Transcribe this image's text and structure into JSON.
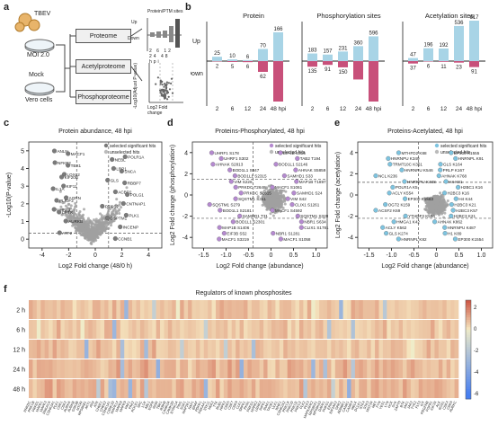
{
  "panel_labels": {
    "a": "a",
    "b": "b",
    "c": "c",
    "d": "d",
    "e": "e",
    "f": "f"
  },
  "panel_a": {
    "virus": "TBEV",
    "moi": "MOI 2.0",
    "mock": "Mock",
    "cells": "Vero cells",
    "boxes": [
      "Proteome",
      "Acetylproteome",
      "Phosphoproteome"
    ],
    "inset_title": "Protein/PTM sites",
    "up": "Up",
    "down": "Down",
    "inset_x": [
      "2",
      "6",
      "12",
      "24",
      "48 hpi"
    ],
    "volcano_y": "-Log10(Adjust P-value)",
    "volcano_x": "Log2 Fold change"
  },
  "chart_data": [
    {
      "id": "b",
      "type": "bar",
      "groups": [
        {
          "title": "Protein",
          "categories": [
            "2",
            "6",
            "12",
            "24",
            "48 hpi"
          ],
          "up": [
            25,
            10,
            6,
            70,
            166
          ],
          "down": [
            2,
            5,
            6,
            62,
            233
          ]
        },
        {
          "title": "Phosphorylation sites",
          "categories": [
            "2",
            "6",
            "12",
            "24",
            "48 hpi"
          ],
          "up": [
            183,
            157,
            231,
            360,
            596
          ],
          "down": [
            135,
            91,
            150,
            442,
            973
          ]
        },
        {
          "title": "Acetylation sites",
          "categories": [
            "2",
            "6",
            "12",
            "24",
            "48 hpi"
          ],
          "up": [
            47,
            196,
            192,
            536,
            617
          ],
          "down": [
            37,
            6,
            11,
            23,
            91
          ]
        }
      ],
      "ylabel_up": "Up",
      "ylabel_down": "Down",
      "colors": {
        "up": "#a8d4e6",
        "down": "#c8507a",
        "up_last": "#a8d4e6"
      }
    },
    {
      "id": "c",
      "type": "scatter",
      "title": "Protein abundance, 48 hpi",
      "xlabel": "Log2 Fold change (48/0 h)",
      "ylabel": "-Log10(P-value)",
      "xticks": [
        "-4",
        "-2",
        "0",
        "2",
        "4"
      ],
      "yticks": [
        "0",
        "1",
        "2",
        "3",
        "4",
        "5"
      ],
      "legend": [
        "selected significant hits",
        "unselected hits"
      ],
      "labels": [
        "ANLN",
        "POLR1A",
        "NFKB2",
        "LRP1",
        "LOXL2",
        "GLS",
        "KIF11",
        "ACBP2",
        "AGRN",
        "CNTNAP1",
        "UHRF1",
        "PLK1",
        "AURKB",
        "INCENP",
        "ATF2",
        "CCNB1",
        "MACF1",
        "NEBL",
        "TBX1",
        "SNCA",
        "KIF20B",
        "RBBP7",
        "IL1A",
        "POLG1",
        "PLIOF2",
        "PTGS2",
        "CFTR",
        "GSPTM1"
      ]
    },
    {
      "id": "d",
      "type": "scatter",
      "title": "Proteins-Phosphorylated, 48 hpi",
      "xlabel": "Log2 Fold change (abundance)",
      "ylabel": "Log2 Fold change (phosphorylation)",
      "xticks": [
        "-1.5",
        "-1.0",
        "-0.5",
        "0",
        "0.5",
        "1.0"
      ],
      "yticks": [
        "-4",
        "-2",
        "0",
        "2",
        "4"
      ],
      "legend": [
        "selected significant hits",
        "unselected hits"
      ],
      "labels": [
        "UHRF1 S178",
        "UHRF1 S302",
        "AHNAK S2813",
        "BOD1L1 S847",
        "BOD1L1 S2315",
        "VIM S226",
        "PRKDC T2648",
        "PRKDC S2615",
        "SQSTM1 S361",
        "SQSTM1 S279",
        "BOD1L1 S2181",
        "SAMHD1 T31",
        "BOD1L1 S2301",
        "MAP1B S1406",
        "EIF3B S52",
        "MACF1 S3219",
        "EIF4B S315",
        "TAB2 T194",
        "BOD1L1 S2146",
        "AHNAK S5859",
        "SAMHD1 S33",
        "MAP1B T1897",
        "MACF1 S1061",
        "SAMHD1 S24",
        "VIM S42",
        "CLIX1 S1261",
        "MACF1 S4592",
        "SQSTM1 S328",
        "NBR1 S634",
        "CLIX1 S1781",
        "NBR1 S1281",
        "MACF1 S1058"
      ]
    },
    {
      "id": "e",
      "type": "scatter",
      "title": "Proteins-Acetylated, 48 hpi",
      "xlabel": "Log2 Fold change (abundance)",
      "ylabel": "Log2 Fold change (acetylation)",
      "xticks": [
        "-1.5",
        "-1.0",
        "-0.5",
        "0",
        "0.5",
        "1.0"
      ],
      "yticks": [
        "-4",
        "-2",
        "0",
        "2",
        "4"
      ],
      "legend": [
        "selected significant hits",
        "unselected hits"
      ],
      "labels": [
        "MTHFD2 K88",
        "HNRNPU K349",
        "TRMT10C K351",
        "HNRNPU K546",
        "NCL K236",
        "HNRNPU K468",
        "POLR1A K5",
        "ACLY K554",
        "EP300 K1583",
        "OGT2 K159",
        "ACSF2 K69",
        "YTHDF3 K554",
        "HMGA1 K42",
        "ACLY K562",
        "GLS K274",
        "HNRNPL K82",
        "EP300 K1555",
        "HNRNPL K91",
        "GLS K164",
        "PRLP K167",
        "AHNAK K768",
        "H4 K91",
        "H2BC1 K16",
        "H2BC3 K16",
        "H4 K44",
        "H2BC3 K21",
        "H2BC3 K57",
        "H2BC3 K21",
        "AHNAK K862",
        "HNRNPU K487",
        "H1 K89",
        "EP300 K1554"
      ]
    },
    {
      "id": "f",
      "type": "heatmap",
      "title": "Regulators of known phosphosites",
      "rows": [
        "2 h",
        "6 h",
        "12 h",
        "24 h",
        "48 h"
      ],
      "colorbar_ticks": [
        "2",
        "0",
        "-2",
        "-4",
        "-6"
      ],
      "columns": [
        "PRKDC",
        "PRKCB",
        "PRKD1",
        "MAPK1",
        "MAPK3",
        "PRKACA",
        "CSNK2A1",
        "PLK1",
        "CDK1",
        "CDK2",
        "AURKA",
        "AURKB",
        "GSK3B",
        "MTOR",
        "RPS6KB1",
        "AKT1",
        "ATM",
        "ATR",
        "CHEK1",
        "CHEK2",
        "CSNK1A1",
        "CSNK1D",
        "MAPK14",
        "MAPK8",
        "MAPK9",
        "PAK1",
        "PAK2",
        "ROCK1",
        "SRC",
        "LCK",
        "ABL1",
        "EGFR",
        "INSR",
        "TBK1",
        "IKBKB",
        "CAMK2A",
        "CAMK2D",
        "DYRK1A",
        "PIM1",
        "SGK1",
        "MAP2K1",
        "RAF1",
        "BRAF",
        "PDPK1",
        "PRKAA1",
        "STK11",
        "NEK2",
        "TTK",
        "BUB1",
        "HIPK2",
        "CDK5",
        "CDK7",
        "CDK9",
        "CLK1",
        "SRPK1",
        "PKN1",
        "PRKG1",
        "MARK2",
        "LRRK2",
        "RIPK1",
        "IRAK1",
        "TAOK1",
        "ULK1",
        "WNK1",
        "CSNK2A2",
        "PRKCA",
        "PRKCD",
        "PRKCE",
        "PRKCZ",
        "PLK2",
        "PLK3",
        "MAPKAPK2",
        "RPS6KA1",
        "RPS6KA3",
        "DAPK1",
        "PHKG1",
        "ERN1",
        "EIF2AK2",
        "GRK2",
        "ADRBK1",
        "CAMK1",
        "CAMK4",
        "MELK",
        "DCLK1",
        "STK4",
        "STK3",
        "MST1R",
        "MET",
        "FYN",
        "YES1",
        "LYN",
        "HCK",
        "SYK",
        "ZAP70",
        "BTK",
        "JAK1",
        "JAK2",
        "TYK2",
        "FLT3",
        "KIT",
        "PDGFRB",
        "FGFR1",
        "IGF1R",
        "ALK",
        "ROS1",
        "CDK4",
        "CDK6",
        "AURKC"
      ]
    }
  ]
}
